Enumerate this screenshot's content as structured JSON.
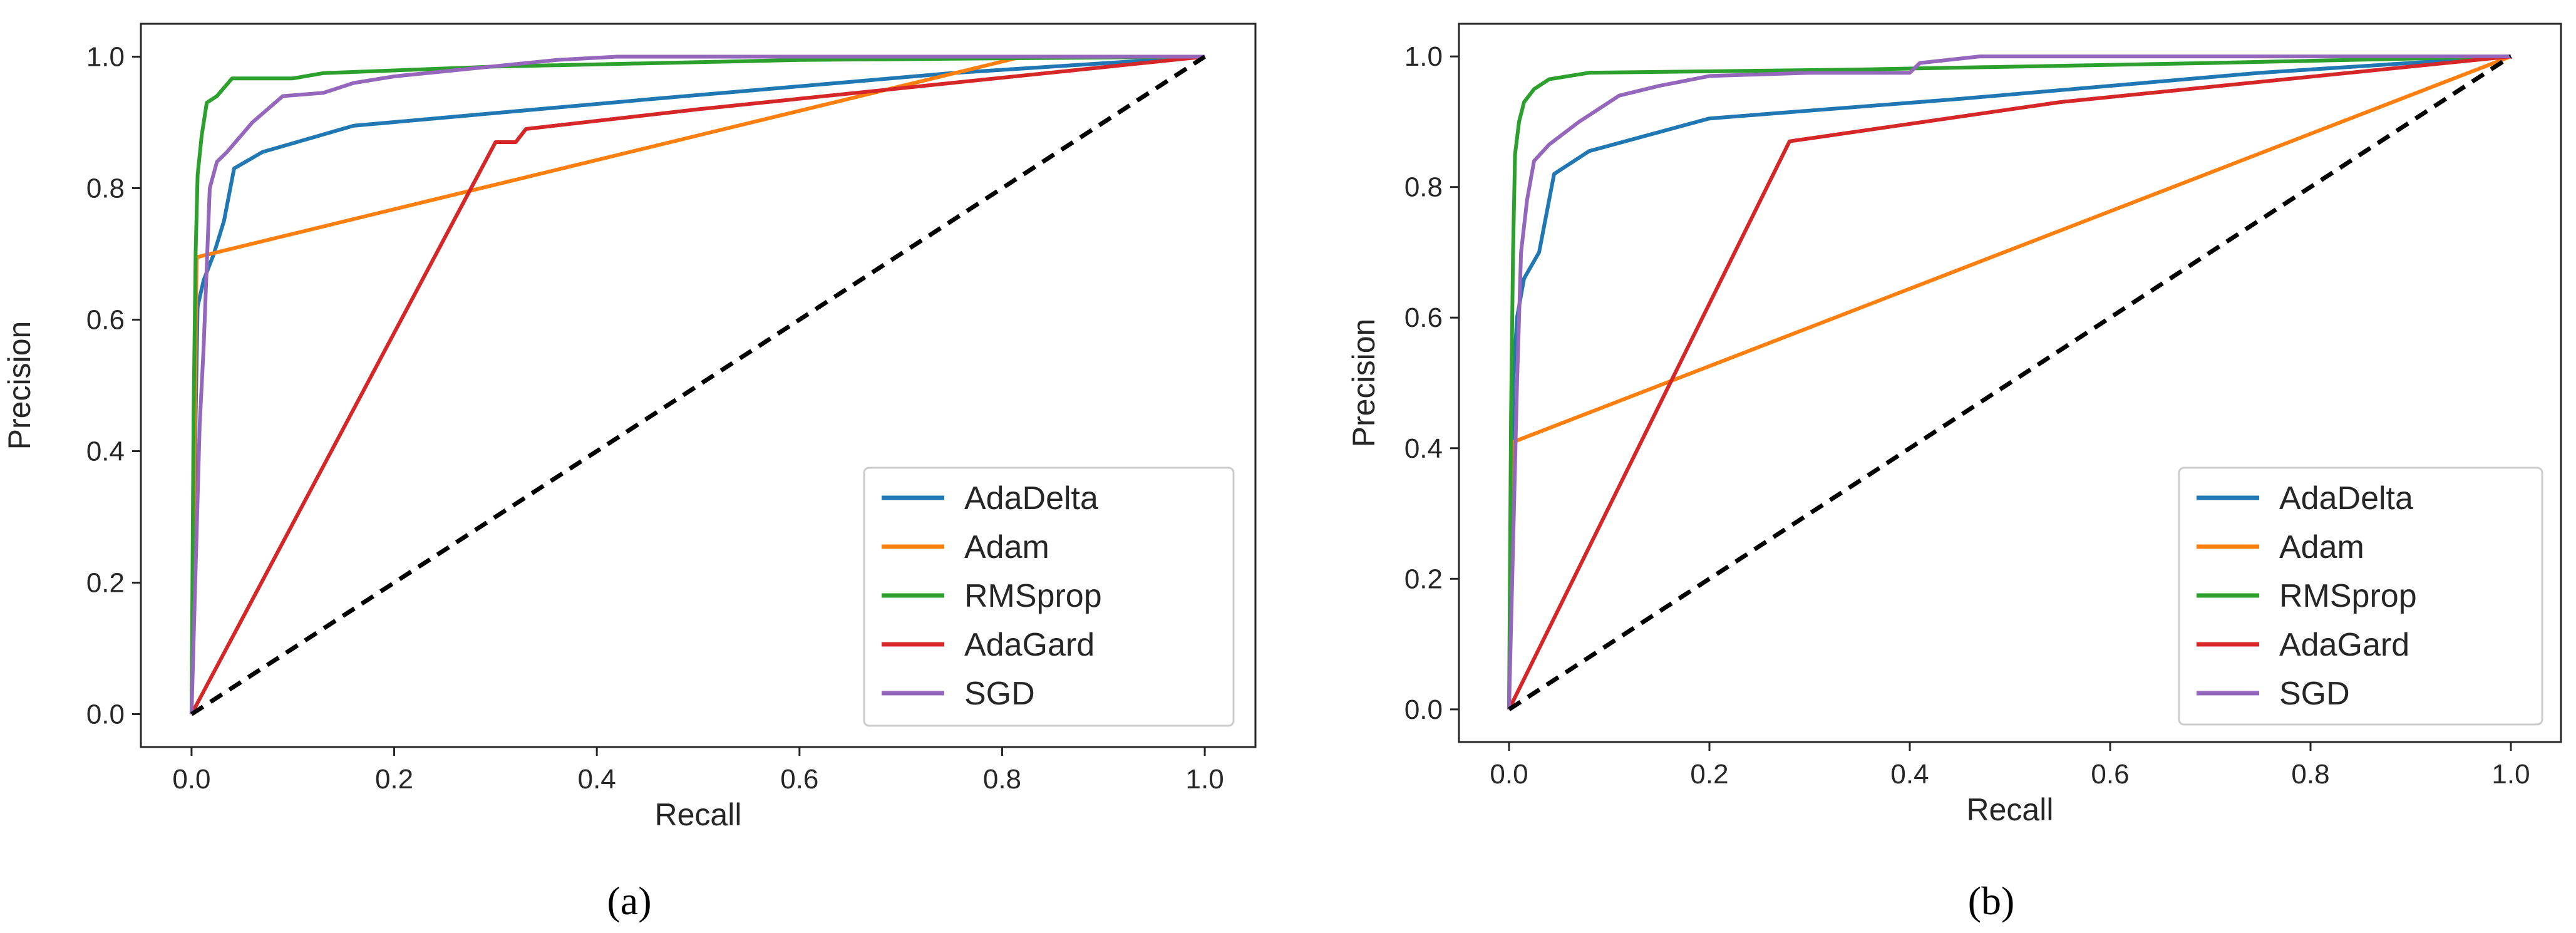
{
  "figure": {
    "captions": [
      "(a)",
      "(b)"
    ]
  },
  "chart_data": [
    {
      "type": "line",
      "panel": "a",
      "title": "",
      "xlabel": "Recall",
      "ylabel": "Precision",
      "xlim": [
        -0.05,
        1.05
      ],
      "ylim": [
        -0.05,
        1.05
      ],
      "xticks": [
        0.0,
        0.2,
        0.4,
        0.6,
        0.8,
        1.0
      ],
      "xtick_labels": [
        "0.0",
        "0.2",
        "0.4",
        "0.6",
        "0.8",
        "1.0"
      ],
      "yticks": [
        0.0,
        0.2,
        0.4,
        0.6,
        0.8,
        1.0
      ],
      "ytick_labels": [
        "0.0",
        "0.2",
        "0.4",
        "0.6",
        "0.8",
        "1.0"
      ],
      "legend_position": "lower-right",
      "series": [
        {
          "name": "AdaDelta",
          "color": "#1f77b4",
          "x": [
            0,
            0.004,
            0.006,
            0.012,
            0.022,
            0.032,
            0.042,
            0.07,
            0.16,
            0.45,
            0.75,
            1.0
          ],
          "y": [
            0,
            0.45,
            0.62,
            0.66,
            0.7,
            0.75,
            0.83,
            0.855,
            0.895,
            0.935,
            0.975,
            1.0
          ]
        },
        {
          "name": "Adam",
          "color": "#ff7f0e",
          "x": [
            0,
            0.005,
            0.82,
            1.0
          ],
          "y": [
            0,
            0.695,
            1.0,
            1.0
          ]
        },
        {
          "name": "RMSprop",
          "color": "#2ca02c",
          "x": [
            0,
            0.002,
            0.004,
            0.006,
            0.01,
            0.015,
            0.025,
            0.04,
            0.1,
            0.13,
            0.3,
            0.6,
            1.0
          ],
          "y": [
            0,
            0.45,
            0.7,
            0.82,
            0.88,
            0.93,
            0.94,
            0.967,
            0.967,
            0.975,
            0.985,
            0.995,
            1.0
          ]
        },
        {
          "name": "AdaGard",
          "color": "#d62728",
          "x": [
            0,
            0.3,
            0.32,
            0.33,
            0.5,
            0.75,
            1.0
          ],
          "y": [
            0,
            0.87,
            0.87,
            0.89,
            0.92,
            0.96,
            1.0
          ]
        },
        {
          "name": "SGD",
          "color": "#9467bd",
          "x": [
            0,
            0.008,
            0.012,
            0.018,
            0.025,
            0.035,
            0.06,
            0.09,
            0.13,
            0.16,
            0.2,
            0.36,
            0.42,
            0.6,
            1.0
          ],
          "y": [
            0,
            0.44,
            0.56,
            0.8,
            0.84,
            0.855,
            0.9,
            0.94,
            0.945,
            0.96,
            0.97,
            0.995,
            1.0,
            1.0,
            1.0
          ]
        },
        {
          "name": "",
          "color": "#000000",
          "dashed": true,
          "in_legend": false,
          "x": [
            0,
            1
          ],
          "y": [
            0,
            1
          ]
        }
      ]
    },
    {
      "type": "line",
      "panel": "b",
      "title": "",
      "xlabel": "Recall",
      "ylabel": "Precision",
      "xlim": [
        -0.05,
        1.05
      ],
      "ylim": [
        -0.05,
        1.05
      ],
      "xticks": [
        0.0,
        0.2,
        0.4,
        0.6,
        0.8,
        1.0
      ],
      "xtick_labels": [
        "0.0",
        "0.2",
        "0.4",
        "0.6",
        "0.8",
        "1.0"
      ],
      "yticks": [
        0.0,
        0.2,
        0.4,
        0.6,
        0.8,
        1.0
      ],
      "ytick_labels": [
        "0.0",
        "0.2",
        "0.4",
        "0.6",
        "0.8",
        "1.0"
      ],
      "legend_position": "lower-right",
      "series": [
        {
          "name": "AdaDelta",
          "color": "#1f77b4",
          "x": [
            0,
            0.004,
            0.008,
            0.015,
            0.03,
            0.045,
            0.08,
            0.2,
            0.45,
            0.75,
            1.0
          ],
          "y": [
            0,
            0.5,
            0.6,
            0.66,
            0.7,
            0.82,
            0.855,
            0.905,
            0.935,
            0.975,
            1.0
          ]
        },
        {
          "name": "Adam",
          "color": "#ff7f0e",
          "x": [
            0,
            0.005,
            1.0
          ],
          "y": [
            0,
            0.41,
            1.0
          ]
        },
        {
          "name": "RMSprop",
          "color": "#2ca02c",
          "x": [
            0,
            0.002,
            0.004,
            0.006,
            0.01,
            0.015,
            0.025,
            0.04,
            0.08,
            0.35,
            0.7,
            1.0
          ],
          "y": [
            0,
            0.45,
            0.7,
            0.85,
            0.9,
            0.93,
            0.95,
            0.965,
            0.975,
            0.98,
            0.99,
            1.0
          ]
        },
        {
          "name": "AdaGard",
          "color": "#d62728",
          "x": [
            0,
            0.28,
            0.55,
            1.0
          ],
          "y": [
            0,
            0.87,
            0.93,
            1.0
          ]
        },
        {
          "name": "SGD",
          "color": "#9467bd",
          "x": [
            0,
            0.008,
            0.012,
            0.018,
            0.025,
            0.04,
            0.07,
            0.11,
            0.15,
            0.2,
            0.3,
            0.4,
            0.41,
            0.47,
            1.0
          ],
          "y": [
            0,
            0.5,
            0.7,
            0.78,
            0.84,
            0.865,
            0.9,
            0.94,
            0.955,
            0.97,
            0.975,
            0.975,
            0.99,
            1.0,
            1.0
          ]
        },
        {
          "name": "",
          "color": "#000000",
          "dashed": true,
          "in_legend": false,
          "x": [
            0,
            1
          ],
          "y": [
            0,
            1
          ]
        }
      ]
    }
  ]
}
